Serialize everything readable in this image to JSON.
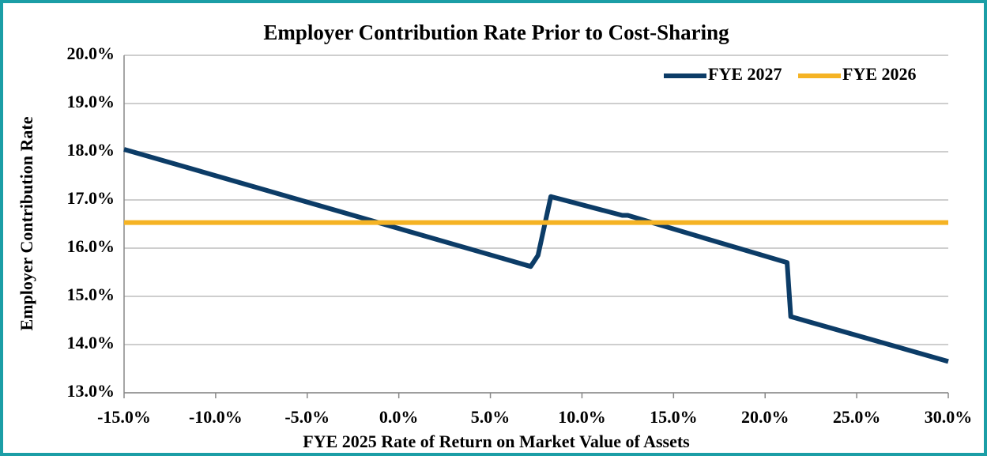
{
  "chart_data": {
    "type": "line",
    "title": "Employer Contribution Rate Prior to Cost-Sharing",
    "xlabel": "FYE 2025 Rate of Return on Market Value of Assets",
    "ylabel": "Employer Contribution Rate",
    "xlim": [
      -15,
      30
    ],
    "xticks": [
      {
        "value": -15,
        "label": "-15.0%"
      },
      {
        "value": -10,
        "label": "-10.0%"
      },
      {
        "value": -5,
        "label": "-5.0%"
      },
      {
        "value": 0,
        "label": "0.0%"
      },
      {
        "value": 5,
        "label": "5.0%"
      },
      {
        "value": 10,
        "label": "10.0%"
      },
      {
        "value": 15,
        "label": "15.0%"
      },
      {
        "value": 20,
        "label": "20.0%"
      },
      {
        "value": 25,
        "label": "25.0%"
      },
      {
        "value": 30,
        "label": "30.0%"
      }
    ],
    "ylim": [
      13,
      20
    ],
    "yticks": [
      {
        "value": 13,
        "label": "13.0%"
      },
      {
        "value": 14,
        "label": "14.0%"
      },
      {
        "value": 15,
        "label": "15.0%"
      },
      {
        "value": 16,
        "label": "16.0%"
      },
      {
        "value": 17,
        "label": "17.0%"
      },
      {
        "value": 18,
        "label": "18.0%"
      },
      {
        "value": 19,
        "label": "19.0%"
      },
      {
        "value": 20,
        "label": "20.0%"
      }
    ],
    "grid": true,
    "legend": "top-right",
    "series": [
      {
        "name": "FYE 2027",
        "color": "#0c3c67",
        "x": [
          -15,
          7.2,
          7.6,
          8.3,
          12.2,
          12.5,
          21.2,
          21.4,
          30
        ],
        "values": [
          18.05,
          15.62,
          15.85,
          17.07,
          16.68,
          16.68,
          15.7,
          14.58,
          13.65
        ]
      },
      {
        "name": "FYE 2026",
        "color": "#f5b324",
        "x": [
          -15,
          30
        ],
        "values": [
          16.53,
          16.53
        ]
      }
    ]
  }
}
